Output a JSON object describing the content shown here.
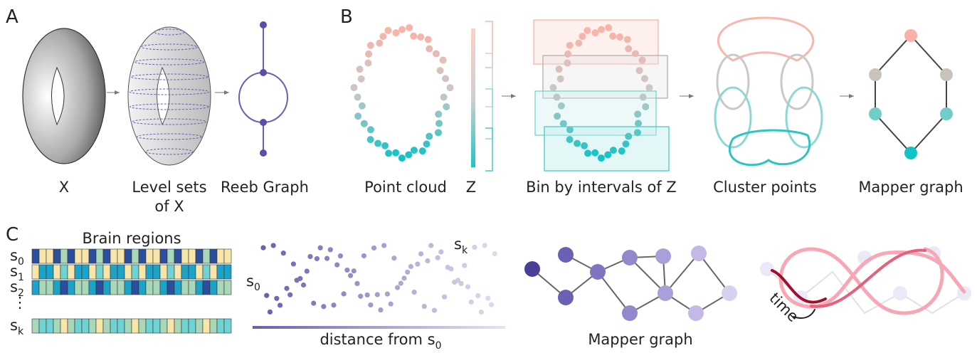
{
  "panel_a": {
    "label": "A",
    "x_caption": "X",
    "level_sets_caption": [
      "Level sets",
      "of X"
    ],
    "reeb_caption": "Reeb Graph"
  },
  "panel_b": {
    "label": "B",
    "point_cloud_caption": "Point cloud",
    "z_caption": "Z",
    "bin_caption": "Bin by intervals of Z",
    "cluster_caption": "Cluster points",
    "mapper_caption": "Mapper graph"
  },
  "panel_c": {
    "label": "C",
    "heatmap_title": "Brain regions",
    "row_labels": [
      {
        "base": "s",
        "sub": "0"
      },
      {
        "base": "s",
        "sub": "1"
      },
      {
        "base": "s",
        "sub": "2"
      },
      {
        "base": "s",
        "sub": "k"
      }
    ],
    "ellipsis": "⋮",
    "start_label": {
      "base": "s",
      "sub": "0"
    },
    "end_label": {
      "base": "s",
      "sub": "k"
    },
    "distance_caption": {
      "base": "distance from s",
      "sub": "0"
    },
    "mapper_caption": "Mapper graph",
    "time_label": "time"
  }
}
